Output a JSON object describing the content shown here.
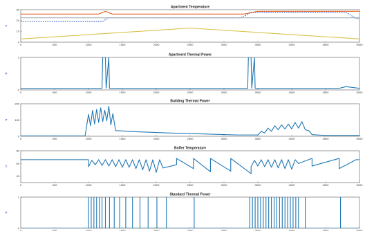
{
  "chart_data": [
    {
      "type": "line",
      "title": "Apartment Temperature",
      "ylabel": "T",
      "xlim": [
        0,
        5000
      ],
      "x_ticks": [
        "0",
        "500",
        "1000",
        "1500",
        "2000",
        "2500",
        "3000",
        "3500",
        "4000",
        "4500",
        "5000"
      ],
      "ylim": [
        0,
        30
      ],
      "y_ticks": [
        "0",
        "10",
        "20",
        "30"
      ],
      "series": [
        {
          "color": "#e35a1a",
          "x": [
            0,
            1150,
            1250,
            1350,
            3300,
            3500,
            4650,
            5000
          ],
          "values": [
            26,
            26,
            28.5,
            26,
            26,
            28.5,
            28.5,
            28.5
          ]
        },
        {
          "color": "#2b5fcf",
          "style": "dashed",
          "x": [
            0,
            1200,
            1300,
            3250,
            3400,
            4800,
            4950,
            5000
          ],
          "values": [
            19,
            19,
            22.5,
            22.5,
            27.5,
            27.5,
            22,
            22
          ]
        },
        {
          "color": "#9aa7b0",
          "x": [
            0,
            5000
          ],
          "values": [
            22.5,
            22.5
          ]
        },
        {
          "color": "#d8c24a",
          "x": [
            0,
            2500,
            5000
          ],
          "values": [
            3,
            13,
            3
          ]
        }
      ]
    },
    {
      "type": "line",
      "title": "Apartment Thermal Power",
      "ylabel": "P",
      "xlim": [
        0,
        5000
      ],
      "x_ticks": [
        "0",
        "500",
        "1000",
        "1500",
        "2000",
        "2500",
        "3000",
        "3500",
        "4000",
        "4500",
        "5000"
      ],
      "ylim": [
        0,
        1
      ],
      "y_ticks": [
        "0",
        "1"
      ],
      "series": [
        {
          "color": "#1f77b4",
          "x": [
            0,
            1200,
            1210,
            1250,
            1260,
            1300,
            1310,
            3350,
            3360,
            3400,
            3410,
            3450,
            3460,
            4700,
            4800,
            5000
          ],
          "values": [
            0.05,
            0.05,
            1,
            1,
            0.05,
            1,
            0.05,
            0.05,
            1,
            1,
            0.05,
            1,
            0.05,
            0.05,
            0.1,
            0.05
          ]
        }
      ]
    },
    {
      "type": "line",
      "title": "Building Thermal Power",
      "ylabel": "P",
      "xlim": [
        0,
        5000
      ],
      "x_ticks": [
        "0",
        "500",
        "1000",
        "1500",
        "2000",
        "2500",
        "3000",
        "3500",
        "4000",
        "4500",
        "5000"
      ],
      "ylim": [
        0,
        200
      ],
      "y_ticks": [
        "0",
        "100",
        "200"
      ],
      "series": [
        {
          "color": "#1f77b4",
          "x": [
            0,
            950,
            1000,
            1030,
            1060,
            1090,
            1120,
            1150,
            1180,
            1210,
            1240,
            1270,
            1300,
            1330,
            1360,
            1400,
            1700,
            2200,
            2700,
            3200,
            3500,
            3550,
            3600,
            3650,
            3700,
            3750,
            3800,
            3850,
            3900,
            3950,
            4000,
            4050,
            4100,
            4150,
            4200,
            4250,
            4300,
            4500,
            4900,
            5000
          ],
          "values": [
            2,
            2,
            135,
            65,
            160,
            75,
            165,
            85,
            175,
            90,
            160,
            95,
            185,
            70,
            140,
            35,
            28,
            20,
            14,
            8,
            8,
            30,
            20,
            50,
            30,
            65,
            40,
            70,
            45,
            75,
            45,
            85,
            50,
            90,
            40,
            35,
            10,
            5,
            5,
            5
          ]
        }
      ]
    },
    {
      "type": "line",
      "title": "Buffer Temperature",
      "ylabel": "T",
      "xlim": [
        0,
        5000
      ],
      "x_ticks": [
        "0",
        "500",
        "1000",
        "1500",
        "2000",
        "2500",
        "3000",
        "3500",
        "4000",
        "4500",
        "5000"
      ],
      "ylim": [
        30,
        80
      ],
      "y_ticks": [
        "40",
        "60",
        "80"
      ],
      "series": [
        {
          "color": "#1f77b4",
          "x": [
            0,
            1000,
            1000,
            1050,
            1100,
            1150,
            1200,
            1250,
            1300,
            1350,
            1400,
            1450,
            1500,
            1550,
            1600,
            1650,
            1700,
            1750,
            1800,
            1850,
            1900,
            1950,
            2000,
            2050,
            2100,
            2300,
            2300,
            2550,
            2550,
            2800,
            2800,
            3100,
            3100,
            3400,
            3400,
            3450,
            3500,
            3550,
            3600,
            3650,
            3700,
            3750,
            3800,
            3850,
            3900,
            3950,
            4000,
            4050,
            4100,
            4300,
            4300,
            4700,
            4700,
            4950,
            5000
          ],
          "values": [
            66,
            66,
            55,
            65,
            58,
            66,
            57,
            66,
            56,
            66,
            55,
            66,
            54,
            66,
            54,
            66,
            52,
            66,
            50,
            66,
            48,
            66,
            46,
            66,
            53,
            58,
            68,
            52,
            68,
            47,
            68,
            48,
            68,
            44,
            55,
            65,
            56,
            66,
            55,
            66,
            54,
            66,
            53,
            66,
            52,
            66,
            51,
            66,
            60,
            68,
            56,
            68,
            52,
            66,
            66
          ]
        }
      ]
    },
    {
      "type": "line",
      "title": "Standard Thermal Power",
      "ylabel": "P",
      "xlim": [
        0,
        5000
      ],
      "x_ticks": [
        "0",
        "500",
        "1000",
        "1500",
        "2000",
        "2500",
        "3000",
        "3500",
        "4000",
        "4500",
        "5000"
      ],
      "ylim": [
        0,
        1
      ],
      "y_ticks": [
        "0",
        "1"
      ],
      "pulses_x": [
        1000,
        1040,
        1080,
        1120,
        1160,
        1200,
        1250,
        1310,
        1380,
        1460,
        1550,
        1650,
        1760,
        1880,
        2010,
        2150,
        2560,
        3380,
        3420,
        3460,
        3500,
        3540,
        3580,
        3620,
        3660,
        3700,
        3740,
        3780,
        3820,
        3860,
        3900,
        3940,
        3980,
        4020,
        4060,
        4100,
        4200,
        4720
      ],
      "pulse_height": 1
    }
  ]
}
